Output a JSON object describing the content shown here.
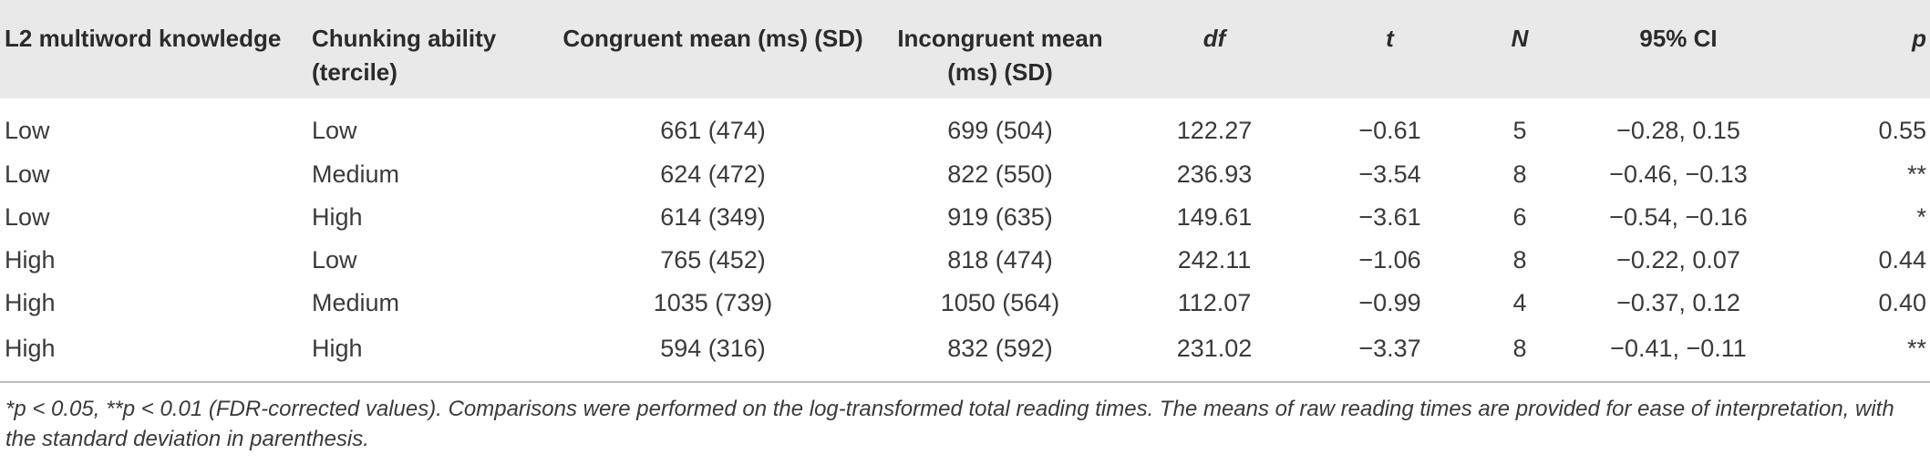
{
  "table": {
    "headers": [
      "L2 multiword knowledge",
      "Chunking ability (tercile)",
      "Congruent mean (ms) (SD)",
      "Incongruent mean (ms) (SD)",
      "df",
      "t",
      "N",
      "95% CI",
      "p"
    ],
    "rows": [
      [
        "Low",
        "Low",
        "661 (474)",
        "699 (504)",
        "122.27",
        "−0.61",
        "5",
        "−0.28, 0.15",
        "0.55"
      ],
      [
        "Low",
        "Medium",
        "624 (472)",
        "822 (550)",
        "236.93",
        "−3.54",
        "8",
        "−0.46, −0.13",
        "**"
      ],
      [
        "Low",
        "High",
        "614 (349)",
        "919 (635)",
        "149.61",
        "−3.61",
        "6",
        "−0.54, −0.16",
        "*"
      ],
      [
        "High",
        "Low",
        "765 (452)",
        "818 (474)",
        "242.11",
        "−1.06",
        "8",
        "−0.22, 0.07",
        "0.44"
      ],
      [
        "High",
        "Medium",
        "1035 (739)",
        "1050 (564)",
        "112.07",
        "−0.99",
        "4",
        "−0.37, 0.12",
        "0.40"
      ],
      [
        "High",
        "High",
        "594 (316)",
        "832 (592)",
        "231.02",
        "−3.37",
        "8",
        "−0.41, −0.11",
        "**"
      ]
    ]
  },
  "footnote": "*p < 0.05, **p < 0.01 (FDR-corrected values). Comparisons were performed on the log-transformed total reading times. The means of raw reading times are provided for ease of interpretation, with the standard deviation in parenthesis."
}
